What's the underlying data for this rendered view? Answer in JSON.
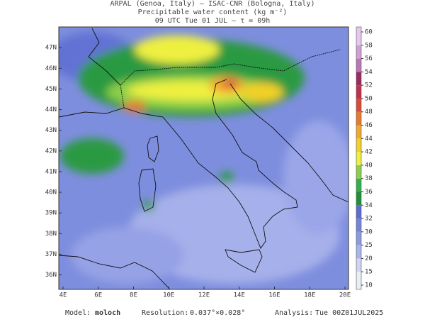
{
  "header": {
    "line1": "ARPAL (Genoa, Italy)  —  ISAC-CNR (Bologna, Italy)",
    "line2": "Precipitable water content (kg m⁻²)",
    "line3": "09 UTC Tue 01 JUL  —  τ = 09h"
  },
  "map": {
    "xlim": [
      3.76,
      20.2
    ],
    "ylim": [
      35.3,
      48.0
    ],
    "xticks": [
      {
        "value": 4,
        "label": "4E"
      },
      {
        "value": 6,
        "label": "6E"
      },
      {
        "value": 8,
        "label": "8E"
      },
      {
        "value": 10,
        "label": "10E"
      },
      {
        "value": 12,
        "label": "12E"
      },
      {
        "value": 14,
        "label": "14E"
      },
      {
        "value": 16,
        "label": "16E"
      },
      {
        "value": 18,
        "label": "18E"
      },
      {
        "value": 20,
        "label": "20E"
      }
    ],
    "yticks": [
      {
        "value": 36,
        "label": "36N"
      },
      {
        "value": 37,
        "label": "37N"
      },
      {
        "value": 38,
        "label": "38N"
      },
      {
        "value": 39,
        "label": "39N"
      },
      {
        "value": 40,
        "label": "40N"
      },
      {
        "value": 41,
        "label": "41N"
      },
      {
        "value": 42,
        "label": "42N"
      },
      {
        "value": 43,
        "label": "43N"
      },
      {
        "value": 44,
        "label": "44N"
      },
      {
        "value": 45,
        "label": "45N"
      },
      {
        "value": 46,
        "label": "46N"
      },
      {
        "value": 47,
        "label": "47N"
      }
    ]
  },
  "colorbar": {
    "ticks": [
      10,
      15,
      20,
      25,
      30,
      32,
      34,
      36,
      38,
      40,
      42,
      44,
      46,
      48,
      50,
      52,
      54,
      56,
      58,
      60
    ],
    "colors": [
      "#eceef6",
      "#d0d4f0",
      "#aab4ea",
      "#8c9ae2",
      "#7484da",
      "#5c6cd0",
      "#1f8f3a",
      "#34b04a",
      "#8ccf4a",
      "#eef040",
      "#f2d028",
      "#f2a830",
      "#e67a30",
      "#d84a3a",
      "#c0304a",
      "#9c2a5c",
      "#b878b8",
      "#d0a0d4",
      "#e6c8ea"
    ]
  },
  "footer": {
    "model_label": "Model:",
    "model": "moloch",
    "resolution_label": "Resolution:",
    "resolution": "0.037°×0.028°",
    "analysis_label": "Analysis:",
    "analysis": "Tue 00Z01JUL2025"
  }
}
